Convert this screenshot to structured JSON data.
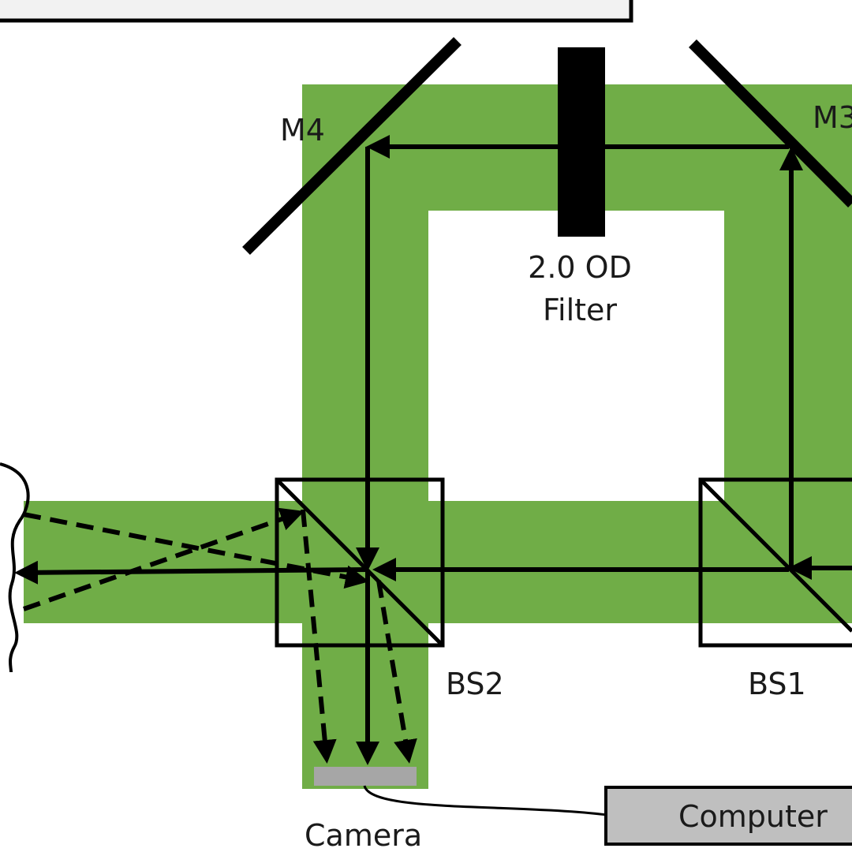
{
  "labels": {
    "m4": "M4",
    "m3": "M3",
    "filter_line1": "2.0 OD",
    "filter_line2": "Filter",
    "bs2": "BS2",
    "bs1": "BS1",
    "camera": "Camera",
    "computer": "Computer"
  },
  "colors": {
    "beam": "#70ad47",
    "line": "#000000",
    "camera_sensor": "#a6a6a6",
    "computer_box": "#bfbfbf",
    "top_panel": "#f2f2f2"
  }
}
